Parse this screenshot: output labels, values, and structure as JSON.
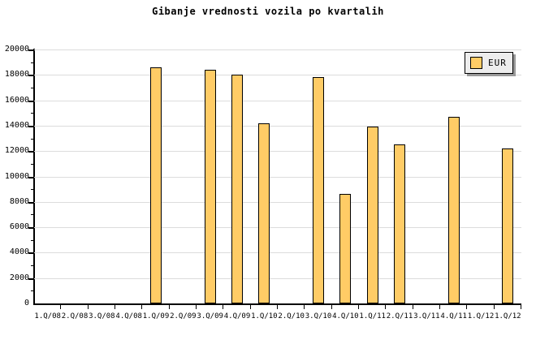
{
  "page": {
    "background": "#FFFFFF"
  },
  "chart_data": {
    "type": "bar",
    "title": "Gibanje vrednosti vozila po kvartalih",
    "categories": [
      "1.Q/08",
      "2.Q/08",
      "3.Q/08",
      "4.Q/08",
      "1.Q/09",
      "2.Q/09",
      "3.Q/09",
      "4.Q/09",
      "1.Q/10",
      "2.Q/10",
      "3.Q/10",
      "4.Q/10",
      "1.Q/11",
      "2.Q/11",
      "3.Q/11",
      "4.Q/11",
      "1.Q/12",
      "1.Q/12"
    ],
    "series": [
      {
        "name": "EUR",
        "values": [
          null,
          null,
          null,
          null,
          18600,
          null,
          18400,
          18000,
          14200,
          null,
          17800,
          8600,
          13900,
          12500,
          null,
          14700,
          null,
          12200
        ]
      }
    ],
    "xlabel": "",
    "ylabel": "",
    "ylim": [
      0,
      20000
    ],
    "ytick_major": 2000,
    "ytick_minor": 1000,
    "grid": "horizontal-major",
    "legend": {
      "label": "EUR",
      "position": "top-right"
    },
    "colors": {
      "bar_fill": "#FFCC66",
      "bar_border": "#000000",
      "grid": "#DCDCDC",
      "axis": "#000000",
      "legend_bg": "#EDEDED",
      "legend_shadow": "#999999",
      "background": "#FFFFFF"
    }
  }
}
